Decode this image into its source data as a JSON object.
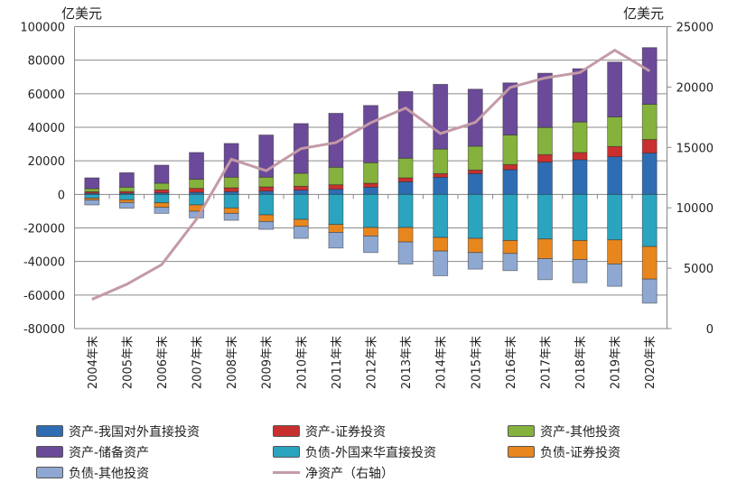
{
  "chart_data": {
    "type": "bar",
    "stacked": true,
    "left_unit": "亿美元",
    "right_unit": "亿美元",
    "categories": [
      "2004年末",
      "2005年末",
      "2006年末",
      "2007年末",
      "2008年末",
      "2009年末",
      "2010年末",
      "2011年末",
      "2012年末",
      "2013年末",
      "2014年末",
      "2015年末",
      "2016年末",
      "2017年末",
      "2018年末",
      "2019年末",
      "2020年末"
    ],
    "ylim": [
      -80000,
      100000
    ],
    "yticks": [
      100000,
      80000,
      60000,
      40000,
      20000,
      0,
      -20000,
      -40000,
      -60000,
      -80000
    ],
    "y2lim": [
      0,
      25000
    ],
    "y2ticks": [
      25000,
      20000,
      15000,
      10000,
      5000,
      0
    ],
    "grid": true,
    "legend_position": "bottom",
    "series": [
      {
        "name": "资产-我国对外直接投资",
        "color": "#2e6db4",
        "axis": "left",
        "values": [
          700,
          700,
          900,
          1260,
          1620,
          1980,
          2520,
          3050,
          4310,
          7550,
          10200,
          12400,
          14740,
          19230,
          20670,
          22460,
          24620
        ]
      },
      {
        "name": "资产-证券投资",
        "color": "#c8302f",
        "axis": "left",
        "values": [
          900,
          1000,
          1800,
          2330,
          2330,
          2510,
          2330,
          2700,
          2340,
          2330,
          2200,
          2160,
          3050,
          4490,
          4310,
          6110,
          8090
        ]
      },
      {
        "name": "资产-其他投资",
        "color": "#85b23c",
        "axis": "left",
        "values": [
          1800,
          2610,
          3950,
          5400,
          6290,
          5750,
          7730,
          10420,
          12220,
          11680,
          14600,
          14190,
          17610,
          16170,
          18150,
          17610,
          21020
        ]
      },
      {
        "name": "资产-储备资产",
        "color": "#6b4a9a",
        "axis": "left",
        "values": [
          6480,
          8630,
          10780,
          15990,
          20130,
          25160,
          29650,
          32170,
          34140,
          39720,
          38600,
          33970,
          31090,
          32350,
          31800,
          32710,
          33780
        ]
      },
      {
        "name": "负债-外国来华直接投资",
        "color": "#2ba4c0",
        "axis": "left",
        "values": [
          -2340,
          -3230,
          -5030,
          -6290,
          -8090,
          -12220,
          -14920,
          -17970,
          -19770,
          -19770,
          -25700,
          -26240,
          -27490,
          -26600,
          -27490,
          -27130,
          -31090
        ]
      },
      {
        "name": "负债-证券投资",
        "color": "#e8861e",
        "axis": "left",
        "values": [
          -1070,
          -1620,
          -2700,
          -3770,
          -3230,
          -3950,
          -4130,
          -4670,
          -5030,
          -8620,
          -8100,
          -8440,
          -7730,
          -11680,
          -11330,
          -14380,
          -19410
        ]
      },
      {
        "name": "负债-其他投资",
        "color": "#8ea8d2",
        "axis": "left",
        "values": [
          -2880,
          -3420,
          -3590,
          -3960,
          -4130,
          -4680,
          -7190,
          -9350,
          -9880,
          -13120,
          -14700,
          -9890,
          -10240,
          -12580,
          -13830,
          -13300,
          -14370
        ]
      },
      {
        "name": "净资产（右轴）",
        "color": "#c39aa5",
        "axis": "right",
        "type": "line",
        "values": [
          2420,
          3670,
          5290,
          9060,
          14020,
          13070,
          14900,
          15400,
          17040,
          18260,
          16150,
          17070,
          19960,
          20750,
          21200,
          23050,
          21330
        ]
      }
    ]
  }
}
